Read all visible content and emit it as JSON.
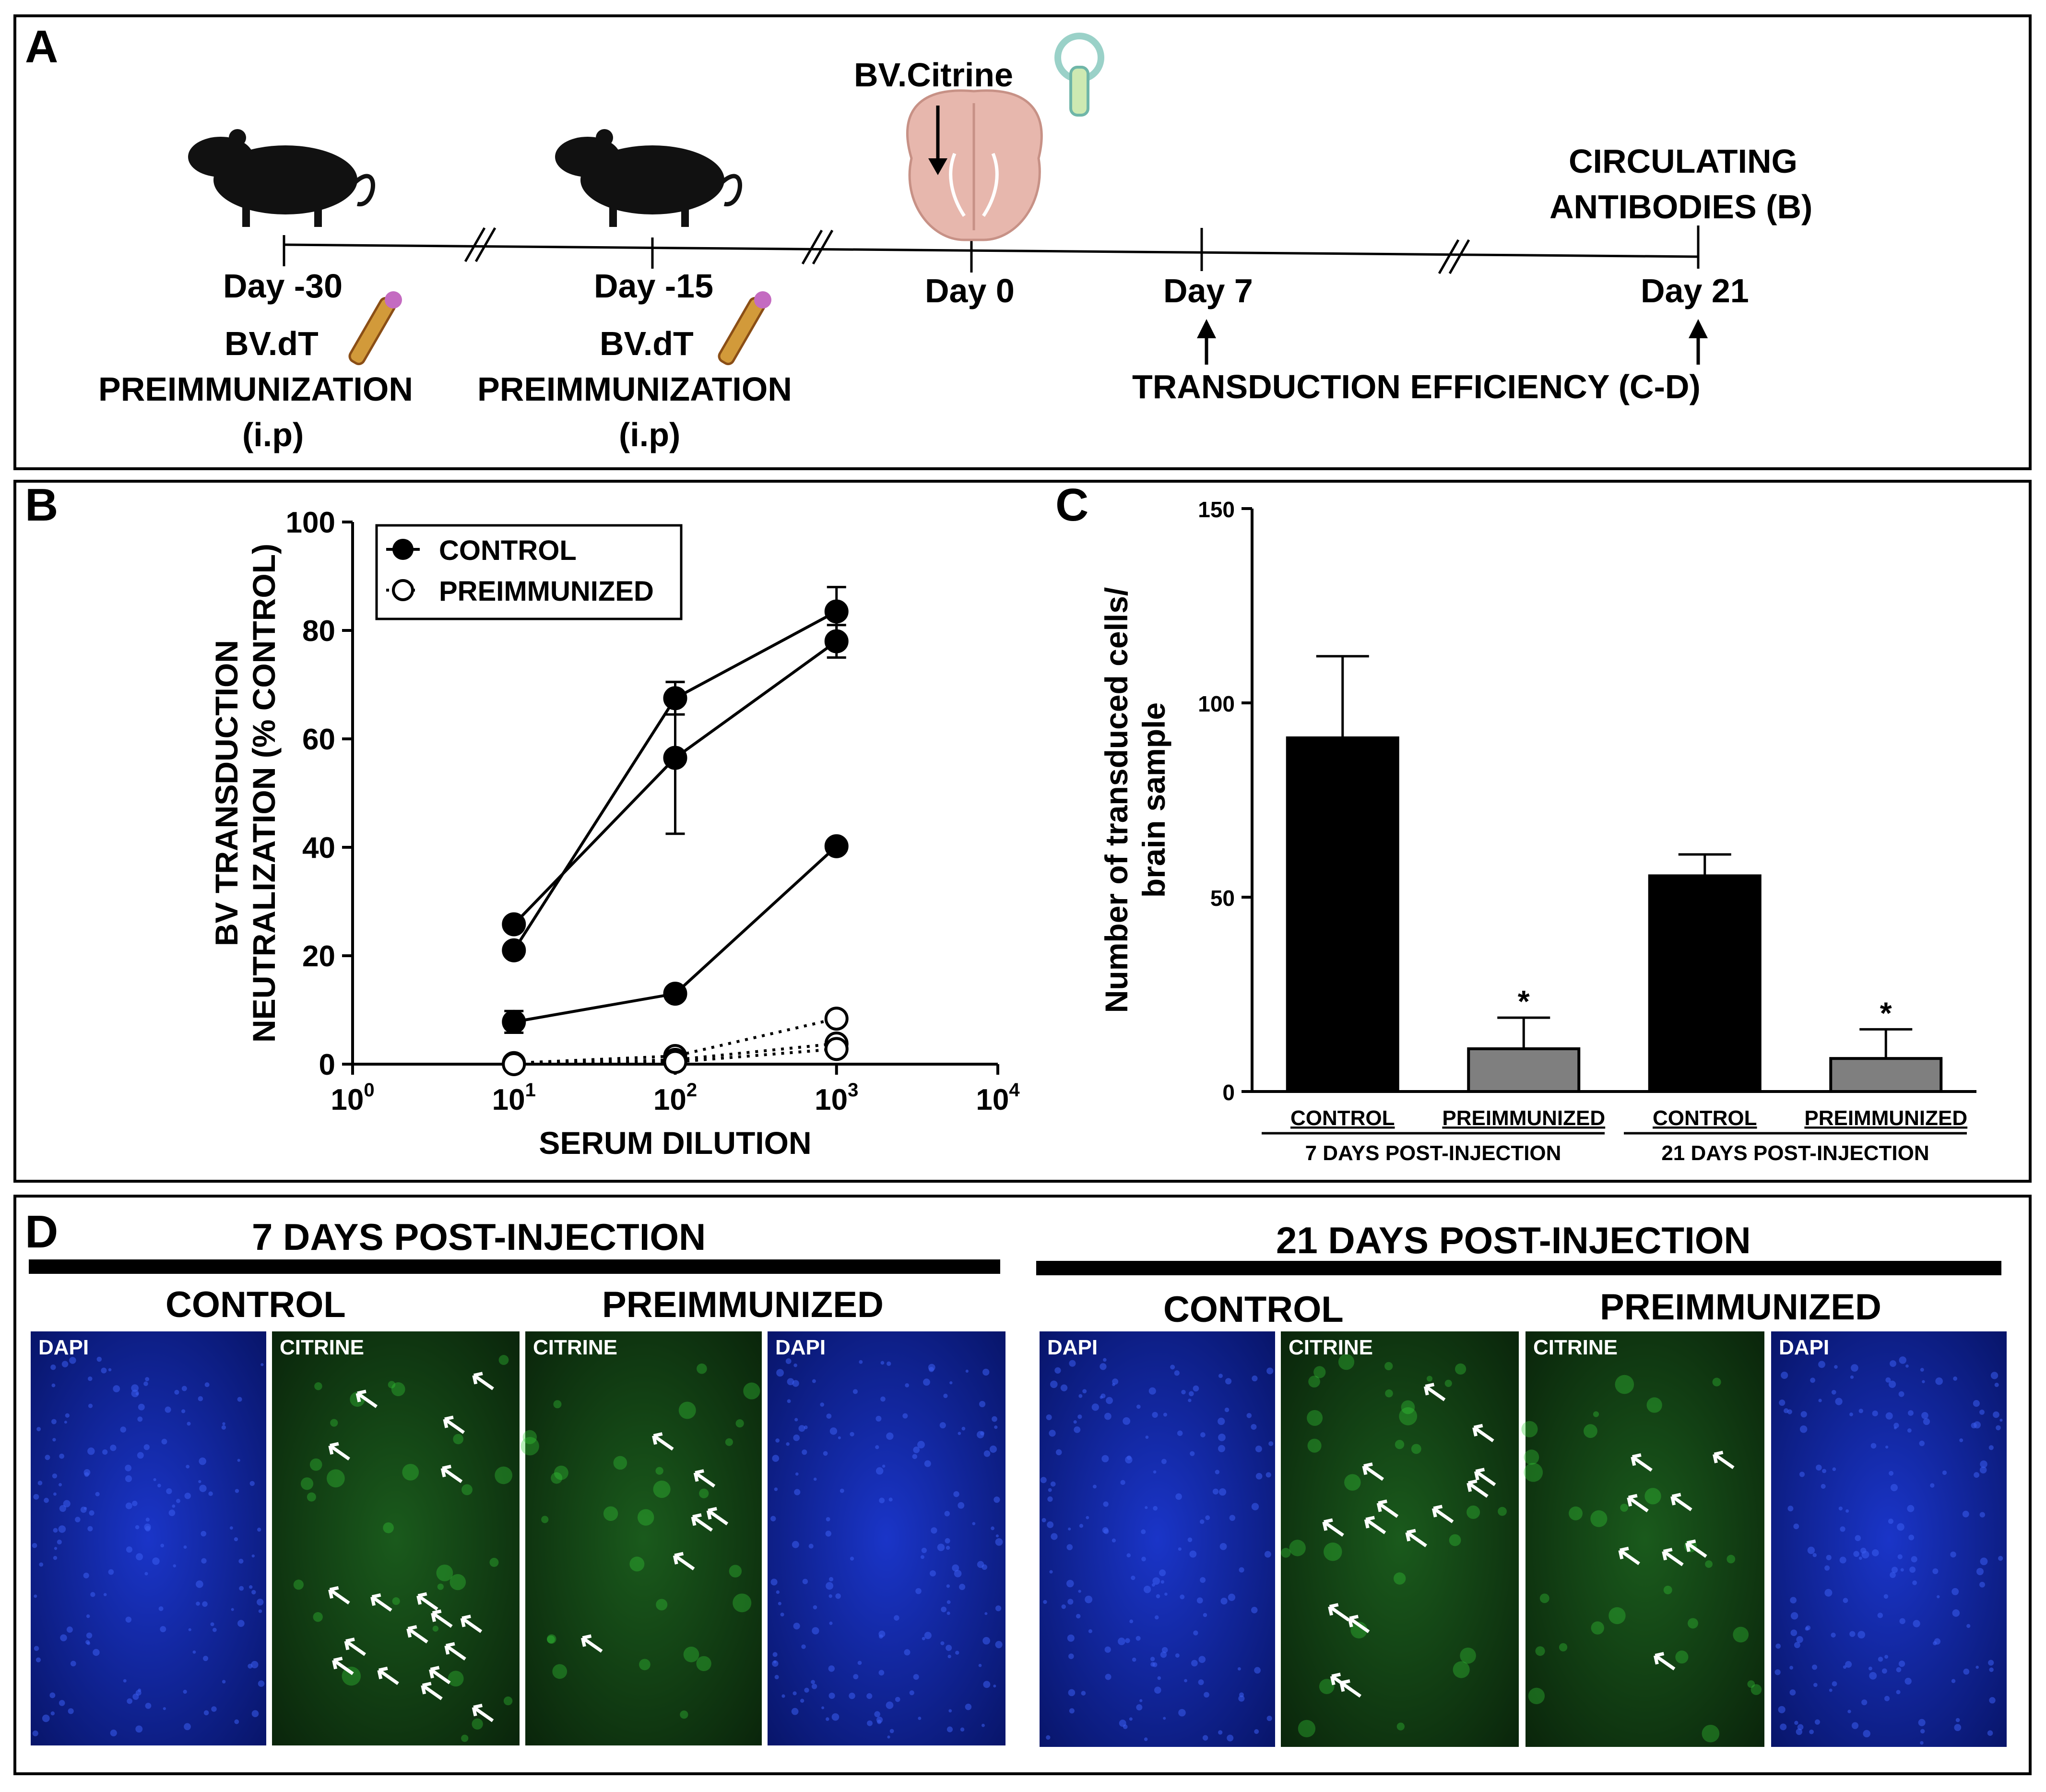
{
  "panelA": {
    "letter": "A",
    "days": [
      "Day -30",
      "Day -15",
      "Day 0",
      "Day 7",
      "Day 21"
    ],
    "vector_top": "BV.Citrine",
    "preimm_name": "BV.dT",
    "preimm_line": "PREIMMUNIZATION",
    "preimm_route": "(i.p)",
    "circulating_line1": "CIRCULATING",
    "circulating_line2": "ANTIBODIES (B)",
    "transduction": "TRANSDUCTION EFFICIENCY (C-D)",
    "icons": [
      "mouse-icon",
      "brain-icon",
      "baculovirus-icon"
    ]
  },
  "panelB": {
    "letter": "B"
  },
  "panelC": {
    "letter": "C"
  },
  "panelD": {
    "letter": "D",
    "group7": "7 DAYS POST-INJECTION",
    "group21": "21 DAYS POST-INJECTION",
    "control": "CONTROL",
    "preimmunized": "PREIMMUNIZED",
    "images7": [
      {
        "label": "DAPI",
        "stain": "dapi"
      },
      {
        "label": "CITRINE",
        "stain": "citrine"
      },
      {
        "label": "CITRINE",
        "stain": "citrine"
      },
      {
        "label": "DAPI",
        "stain": "dapi"
      }
    ],
    "images21": [
      {
        "label": "DAPI",
        "stain": "dapi"
      },
      {
        "label": "CITRINE",
        "stain": "citrine"
      },
      {
        "label": "CITRINE",
        "stain": "citrine"
      },
      {
        "label": "DAPI",
        "stain": "dapi"
      }
    ],
    "colors": {
      "dapi": "#0b1f8c",
      "citrine": "#123a12",
      "signal": "#36d13a",
      "arrow": "#ffffff"
    }
  },
  "chart_data": [
    {
      "type": "line",
      "xlabel": "SERUM DILUTION",
      "ylabel": "BV TRANSDUCTION NEUTRALIZATION (% CONTROL)",
      "xscale": "log",
      "xlim": [
        1,
        10000
      ],
      "ylim": [
        0,
        100
      ],
      "xticks": [
        1,
        10,
        100,
        1000,
        10000
      ],
      "xtick_labels": [
        "10^0",
        "10^1",
        "10^2",
        "10^3",
        "10^4"
      ],
      "yticks": [
        0,
        20,
        40,
        60,
        80,
        100
      ],
      "legend": [
        "CONTROL",
        "PREIMMUNIZED"
      ],
      "legend_position": "top-left",
      "series": [
        {
          "name": "CONTROL",
          "marker": "filled",
          "x": [
            10,
            100,
            1000
          ],
          "y": [
            25.8,
            56.5,
            78.0
          ],
          "err": [
            0,
            14,
            3
          ]
        },
        {
          "name": "CONTROL",
          "marker": "filled",
          "x": [
            10,
            100,
            1000
          ],
          "y": [
            21.0,
            67.5,
            83.5
          ],
          "err": [
            0,
            3,
            4.5
          ]
        },
        {
          "name": "CONTROL",
          "marker": "filled",
          "x": [
            10,
            100,
            1000
          ],
          "y": [
            7.8,
            13.0,
            40.2
          ],
          "err": [
            2,
            0,
            0
          ]
        },
        {
          "name": "PREIMMUNIZED",
          "marker": "open",
          "x": [
            10,
            100,
            1000
          ],
          "y": [
            0.2,
            1.5,
            8.4
          ],
          "err": [
            0,
            0,
            0
          ]
        },
        {
          "name": "PREIMMUNIZED",
          "marker": "open",
          "x": [
            10,
            100,
            1000
          ],
          "y": [
            0.1,
            0.8,
            3.8
          ],
          "err": [
            0,
            0,
            0
          ]
        },
        {
          "name": "PREIMMUNIZED",
          "marker": "open",
          "x": [
            10,
            100,
            1000
          ],
          "y": [
            0.0,
            0.4,
            2.8
          ],
          "err": [
            0,
            0,
            0
          ]
        }
      ]
    },
    {
      "type": "bar",
      "ylabel": "Number of transduced cells/ brain sample",
      "ylim": [
        0,
        150
      ],
      "yticks": [
        0,
        50,
        100,
        150
      ],
      "categories": [
        "CONTROL",
        "PREIMMUNIZED",
        "CONTROL",
        "PREIMMUNIZED"
      ],
      "groups": [
        "7 DAYS POST-INJECTION",
        "21 DAYS POST-INJECTION"
      ],
      "values": [
        91,
        11,
        55.5,
        8.5
      ],
      "errors": [
        21,
        8,
        5.5,
        7.5
      ],
      "significance": [
        "",
        "*",
        "",
        "*"
      ],
      "bar_colors": [
        "#000000",
        "#7f7f7f",
        "#000000",
        "#7f7f7f"
      ]
    }
  ]
}
